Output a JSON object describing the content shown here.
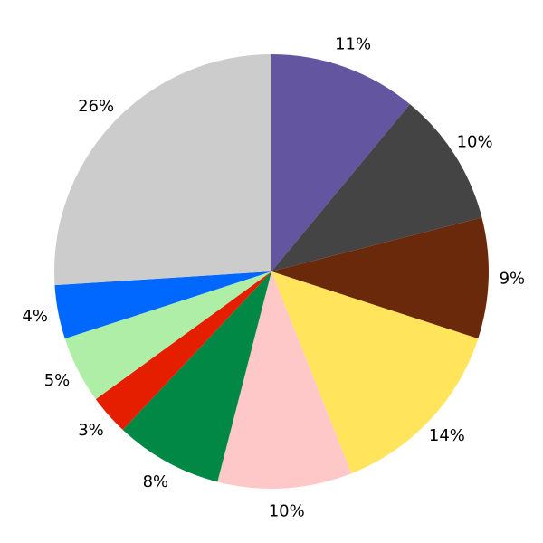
{
  "chart_data": {
    "type": "pie",
    "values": [
      11,
      10,
      9,
      14,
      10,
      8,
      3,
      5,
      4,
      26
    ],
    "value_labels": [
      "11%",
      "10%",
      "9%",
      "14%",
      "10%",
      "8%",
      "3%",
      "5%",
      "4%",
      "26%"
    ],
    "colors": [
      "#6355a0",
      "#444444",
      "#6b290b",
      "#ffe45c",
      "#ffc8c8",
      "#008844",
      "#e61e00",
      "#aeeea6",
      "#0068ff",
      "#cccccc"
    ]
  }
}
